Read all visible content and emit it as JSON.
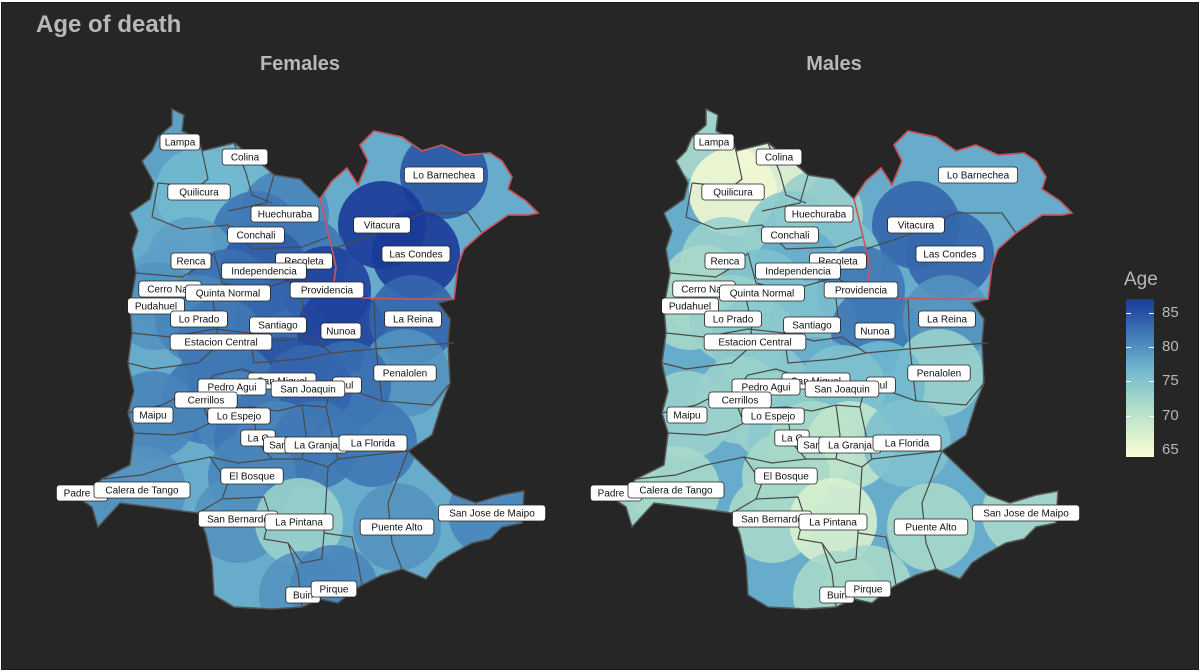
{
  "title": "Age of death",
  "legend": {
    "title": "Age",
    "ticks": [
      "85",
      "80",
      "75",
      "70",
      "65"
    ],
    "tick_values": [
      85,
      80,
      75,
      70,
      65
    ],
    "range": [
      64,
      87
    ],
    "colors": [
      "#fdfdd4",
      "#b3e0c9",
      "#71b9cf",
      "#3f78b5",
      "#1b3a99"
    ]
  },
  "highlight_color": "#c9545e",
  "panels": [
    {
      "title": "Females",
      "communes": [
        {
          "name": "Lampa",
          "label": "Lampa",
          "age": 77
        },
        {
          "name": "Colina",
          "label": "Colina",
          "age": 75
        },
        {
          "name": "Quilicura",
          "label": "Quilicura",
          "age": 75
        },
        {
          "name": "Lo Barnechea",
          "label": "Lo Barnechea",
          "age": 84
        },
        {
          "name": "Huechuraba",
          "label": "Huechuraba",
          "age": 79
        },
        {
          "name": "Vitacura",
          "label": "Vitacura",
          "age": 87
        },
        {
          "name": "Conchali",
          "label": "Conchali",
          "age": 80
        },
        {
          "name": "Las Condes",
          "label": "Las Condes",
          "age": 87
        },
        {
          "name": "Renca",
          "label": "Renca",
          "age": 77
        },
        {
          "name": "Recoleta",
          "label": "Recoleta",
          "age": 80
        },
        {
          "name": "Independencia",
          "label": "Independencia",
          "age": 83
        },
        {
          "name": "Cerro Navia",
          "label": "Cerro Nav",
          "age": 77
        },
        {
          "name": "Quinta Normal",
          "label": "Quinta Normal",
          "age": 81
        },
        {
          "name": "Providencia",
          "label": "Providencia",
          "age": 86
        },
        {
          "name": "Pudahuel",
          "label": "Pudahuel",
          "age": 78
        },
        {
          "name": "Lo Prado",
          "label": "Lo Prado",
          "age": 79
        },
        {
          "name": "Santiago",
          "label": "Santiago",
          "age": 82
        },
        {
          "name": "Nunoa",
          "label": "Nunoa",
          "age": 86
        },
        {
          "name": "La Reina",
          "label": "La Reina",
          "age": 82
        },
        {
          "name": "Estacion Central",
          "label": "Estacion Central",
          "age": 80
        },
        {
          "name": "Penalolen",
          "label": "Penalolen",
          "age": 78
        },
        {
          "name": "Macul",
          "label": "cul",
          "age": 81
        },
        {
          "name": "San Miguel",
          "label": "San Miguel",
          "age": 84
        },
        {
          "name": "Pedro Aguirre Cerda",
          "label": "Pedro Agui",
          "age": 80
        },
        {
          "name": "San Joaquin",
          "label": "San Joaquin",
          "age": 82
        },
        {
          "name": "Cerrillos",
          "label": "Cerrillos",
          "age": 80
        },
        {
          "name": "Maipu",
          "label": "Maipu",
          "age": 79
        },
        {
          "name": "Lo Espejo",
          "label": "Lo Espejo",
          "age": 79
        },
        {
          "name": "La Cisterna",
          "label": "La C",
          "age": 80
        },
        {
          "name": "San Ramon",
          "label": "San",
          "age": 79
        },
        {
          "name": "La Granja",
          "label": "La Granja",
          "age": 80
        },
        {
          "name": "La Florida",
          "label": "La Florida",
          "age": 80
        },
        {
          "name": "El Bosque",
          "label": "El Bosque",
          "age": 79
        },
        {
          "name": "Padre Hurtado",
          "label": "Padre H",
          "age": 78
        },
        {
          "name": "Calera de Tango",
          "label": "Calera de Tango",
          "age": 78
        },
        {
          "name": "San Bernardo",
          "label": "San Bernardo",
          "age": 78
        },
        {
          "name": "La Pintana",
          "label": "La Pintana",
          "age": 72
        },
        {
          "name": "Puente Alto",
          "label": "Puente Alto",
          "age": 78
        },
        {
          "name": "San Jose de Maipo",
          "label": "San Jose de Maipo",
          "age": 79
        },
        {
          "name": "Buin",
          "label": "Buin",
          "age": 78
        },
        {
          "name": "Pirque",
          "label": "Pirque",
          "age": 79
        }
      ]
    },
    {
      "title": "Males",
      "communes": [
        {
          "name": "Lampa",
          "label": "Lampa",
          "age": 71
        },
        {
          "name": "Colina",
          "label": "Colina",
          "age": 66
        },
        {
          "name": "Quilicura",
          "label": "Quilicura",
          "age": 65
        },
        {
          "name": "Lo Barnechea",
          "label": "Lo Barnechea",
          "age": 76
        },
        {
          "name": "Huechuraba",
          "label": "Huechuraba",
          "age": 72
        },
        {
          "name": "Vitacura",
          "label": "Vitacura",
          "age": 82
        },
        {
          "name": "Conchali",
          "label": "Conchali",
          "age": 73
        },
        {
          "name": "Las Condes",
          "label": "Las Condes",
          "age": 82
        },
        {
          "name": "Renca",
          "label": "Renca",
          "age": 72
        },
        {
          "name": "Recoleta",
          "label": "Recoleta",
          "age": 74
        },
        {
          "name": "Independencia",
          "label": "Independencia",
          "age": 76
        },
        {
          "name": "Cerro Navia",
          "label": "Cerro Nav",
          "age": 71
        },
        {
          "name": "Quinta Normal",
          "label": "Quinta Normal",
          "age": 74
        },
        {
          "name": "Providencia",
          "label": "Providencia",
          "age": 80
        },
        {
          "name": "Pudahuel",
          "label": "Pudahuel",
          "age": 71
        },
        {
          "name": "Lo Prado",
          "label": "Lo Prado",
          "age": 72
        },
        {
          "name": "Santiago",
          "label": "Santiago",
          "age": 74
        },
        {
          "name": "Nunoa",
          "label": "Nunoa",
          "age": 80
        },
        {
          "name": "La Reina",
          "label": "La Reina",
          "age": 78
        },
        {
          "name": "Estacion Central",
          "label": "Estacion Central",
          "age": 73
        },
        {
          "name": "Penalolen",
          "label": "Penalolen",
          "age": 72
        },
        {
          "name": "Macul",
          "label": "cul",
          "age": 75
        },
        {
          "name": "San Miguel",
          "label": "San Miguel",
          "age": 76
        },
        {
          "name": "Pedro Aguirre Cerda",
          "label": "Pedro Agui",
          "age": 73
        },
        {
          "name": "San Joaquin",
          "label": "San Joaquin",
          "age": 74
        },
        {
          "name": "Cerrillos",
          "label": "Cerrillos",
          "age": 72
        },
        {
          "name": "Maipu",
          "label": "Maipu",
          "age": 72
        },
        {
          "name": "Lo Espejo",
          "label": "Lo Espejo",
          "age": 72
        },
        {
          "name": "La Cisterna",
          "label": "La C",
          "age": 73
        },
        {
          "name": "San Ramon",
          "label": "San",
          "age": 71
        },
        {
          "name": "La Granja",
          "label": "La Granja",
          "age": 69
        },
        {
          "name": "La Florida",
          "label": "La Florida",
          "age": 74
        },
        {
          "name": "El Bosque",
          "label": "El Bosque",
          "age": 71
        },
        {
          "name": "Padre Hurtado",
          "label": "Padre H",
          "age": 71
        },
        {
          "name": "Calera de Tango",
          "label": "Calera de Tango",
          "age": 71
        },
        {
          "name": "San Bernardo",
          "label": "San Bernardo",
          "age": 71
        },
        {
          "name": "La Pintana",
          "label": "La Pintana",
          "age": 67
        },
        {
          "name": "Puente Alto",
          "label": "Puente Alto",
          "age": 71
        },
        {
          "name": "San Jose de Maipo",
          "label": "San Jose de Maipo",
          "age": 71
        },
        {
          "name": "Buin",
          "label": "Buin",
          "age": 71
        },
        {
          "name": "Pirque",
          "label": "Pirque",
          "age": 71
        }
      ]
    }
  ]
}
